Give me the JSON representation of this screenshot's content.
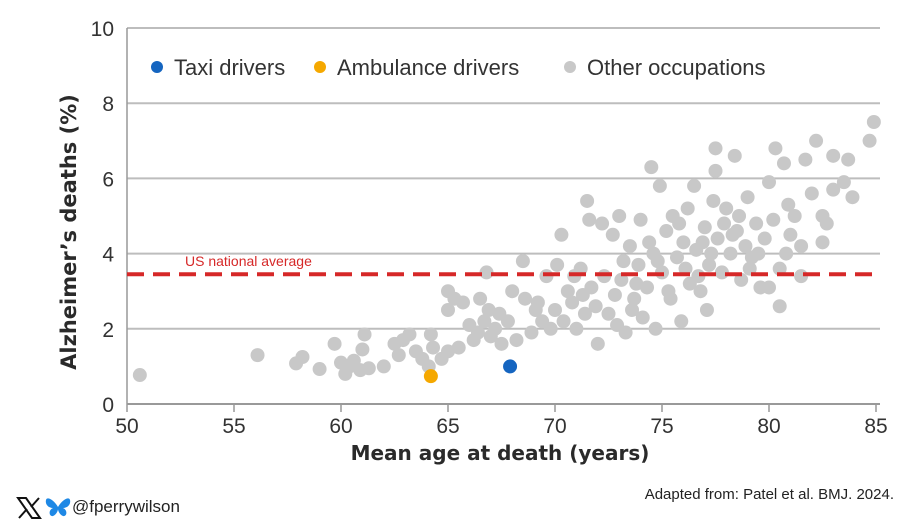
{
  "chart_data": {
    "type": "scatter",
    "xlabel": "Mean age at death (years)",
    "ylabel": "Alzheimer’s deaths (%)",
    "xlim": [
      50,
      85
    ],
    "ylim": [
      0,
      10
    ],
    "xticks": [
      50,
      55,
      60,
      65,
      70,
      75,
      80,
      85
    ],
    "yticks": [
      0,
      2,
      4,
      6,
      8,
      10
    ],
    "grid": "horizontal",
    "legend_position": "top",
    "reference_line": {
      "label": "US national average",
      "y": 3.45,
      "color": "#d62828"
    },
    "series": [
      {
        "name": "Taxi drivers",
        "color": "#1565c0",
        "points": [
          [
            67.9,
            1.0
          ]
        ]
      },
      {
        "name": "Ambulance drivers",
        "color": "#f5a800",
        "points": [
          [
            64.2,
            0.74
          ]
        ]
      },
      {
        "name": "Other occupations",
        "color": "#c8c8c8",
        "points": [
          [
            50.6,
            0.77
          ],
          [
            56.1,
            1.3
          ],
          [
            57.9,
            1.08
          ],
          [
            58.2,
            1.25
          ],
          [
            59,
            0.93
          ],
          [
            59.7,
            1.6
          ],
          [
            60,
            1.1
          ],
          [
            60.2,
            0.8
          ],
          [
            60.4,
            1.0
          ],
          [
            60.6,
            1.15
          ],
          [
            60.9,
            0.9
          ],
          [
            61,
            1.45
          ],
          [
            61.1,
            1.85
          ],
          [
            61.3,
            0.95
          ],
          [
            62,
            1.0
          ],
          [
            62.5,
            1.6
          ],
          [
            62.7,
            1.3
          ],
          [
            62.9,
            1.7
          ],
          [
            63.2,
            1.85
          ],
          [
            63.5,
            1.4
          ],
          [
            63.8,
            1.2
          ],
          [
            64.1,
            1.0
          ],
          [
            64.2,
            1.85
          ],
          [
            64.3,
            1.5
          ],
          [
            64.7,
            1.2
          ],
          [
            65,
            1.4
          ],
          [
            65,
            3.0
          ],
          [
            65,
            2.5
          ],
          [
            65.3,
            2.8
          ],
          [
            65.5,
            1.5
          ],
          [
            65.7,
            2.7
          ],
          [
            66,
            2.1
          ],
          [
            66.2,
            1.7
          ],
          [
            66.4,
            1.9
          ],
          [
            66.5,
            2.8
          ],
          [
            66.8,
            3.5
          ],
          [
            66.9,
            2.5
          ],
          [
            67,
            1.8
          ],
          [
            67.2,
            2.0
          ],
          [
            67.5,
            1.6
          ],
          [
            67.8,
            2.2
          ],
          [
            68,
            3.0
          ],
          [
            68.2,
            1.7
          ],
          [
            68.5,
            3.8
          ],
          [
            68.6,
            2.8
          ],
          [
            68.9,
            1.9
          ],
          [
            69.2,
            2.7
          ],
          [
            69.4,
            2.2
          ],
          [
            69.6,
            3.4
          ],
          [
            69.8,
            2.0
          ],
          [
            70,
            2.5
          ],
          [
            70.1,
            3.7
          ],
          [
            70.3,
            4.5
          ],
          [
            70.4,
            2.2
          ],
          [
            70.6,
            3.0
          ],
          [
            70.8,
            2.7
          ],
          [
            71,
            2.0
          ],
          [
            71.2,
            3.6
          ],
          [
            71.4,
            2.4
          ],
          [
            71.5,
            5.4
          ],
          [
            71.6,
            4.9
          ],
          [
            71.7,
            3.1
          ],
          [
            71.9,
            2.6
          ],
          [
            72,
            1.6
          ],
          [
            72.2,
            4.8
          ],
          [
            72.3,
            3.4
          ],
          [
            72.5,
            2.4
          ],
          [
            72.7,
            4.5
          ],
          [
            72.8,
            2.9
          ],
          [
            73,
            5.0
          ],
          [
            73.1,
            3.3
          ],
          [
            73.3,
            1.9
          ],
          [
            73.5,
            4.2
          ],
          [
            73.7,
            2.8
          ],
          [
            73.9,
            3.7
          ],
          [
            74,
            4.9
          ],
          [
            74.1,
            2.3
          ],
          [
            74.3,
            3.1
          ],
          [
            74.5,
            6.3
          ],
          [
            74.6,
            4.0
          ],
          [
            74.7,
            2.0
          ],
          [
            74.9,
            5.8
          ],
          [
            75,
            3.5
          ],
          [
            75.2,
            4.6
          ],
          [
            75.4,
            2.8
          ],
          [
            75.5,
            5.0
          ],
          [
            75.7,
            3.9
          ],
          [
            75.9,
            2.2
          ],
          [
            76,
            4.3
          ],
          [
            76.2,
            5.2
          ],
          [
            76.3,
            3.2
          ],
          [
            76.5,
            5.8
          ],
          [
            76.6,
            4.1
          ],
          [
            76.8,
            3.0
          ],
          [
            77,
            4.7
          ],
          [
            77.1,
            2.5
          ],
          [
            77.2,
            3.7
          ],
          [
            77.4,
            5.4
          ],
          [
            77.5,
            6.2
          ],
          [
            77.5,
            6.8
          ],
          [
            77.6,
            4.4
          ],
          [
            77.8,
            3.5
          ],
          [
            78,
            5.2
          ],
          [
            78.2,
            4.0
          ],
          [
            78.4,
            6.6
          ],
          [
            78.5,
            4.6
          ],
          [
            78.7,
            3.3
          ],
          [
            78.9,
            4.2
          ],
          [
            79,
            5.5
          ],
          [
            79.2,
            3.9
          ],
          [
            79.4,
            4.8
          ],
          [
            79.6,
            3.1
          ],
          [
            79.8,
            4.4
          ],
          [
            80,
            5.9
          ],
          [
            80,
            3.1
          ],
          [
            80.2,
            4.9
          ],
          [
            80.3,
            6.8
          ],
          [
            80.5,
            3.6
          ],
          [
            80.5,
            2.6
          ],
          [
            80.7,
            6.4
          ],
          [
            80.9,
            5.3
          ],
          [
            81,
            4.5
          ],
          [
            81.5,
            3.4
          ],
          [
            81.5,
            4.2
          ],
          [
            81.7,
            6.5
          ],
          [
            82,
            5.6
          ],
          [
            82.2,
            7.0
          ],
          [
            82.5,
            4.3
          ],
          [
            82.5,
            5.0
          ],
          [
            82.7,
            4.8
          ],
          [
            83,
            6.6
          ],
          [
            83,
            5.7
          ],
          [
            83.5,
            5.9
          ],
          [
            83.7,
            6.5
          ],
          [
            83.9,
            5.5
          ],
          [
            84.7,
            7.0
          ],
          [
            84.9,
            7.5
          ],
          [
            73.8,
            3.2
          ],
          [
            74.8,
            3.8
          ],
          [
            76.1,
            3.6
          ],
          [
            77.3,
            4.0
          ],
          [
            78.3,
            4.5
          ],
          [
            79.5,
            4.0
          ],
          [
            75.3,
            3.0
          ],
          [
            72.9,
            2.1
          ],
          [
            73.6,
            2.5
          ],
          [
            76.9,
            4.3
          ],
          [
            78.6,
            5.0
          ],
          [
            79.1,
            3.6
          ],
          [
            74.4,
            4.3
          ],
          [
            75.8,
            4.8
          ],
          [
            71.3,
            2.9
          ],
          [
            70.9,
            3.4
          ],
          [
            69.1,
            2.5
          ],
          [
            67.4,
            2.4
          ],
          [
            66.7,
            2.2
          ],
          [
            73.2,
            3.8
          ],
          [
            76.7,
            3.4
          ],
          [
            77.9,
            4.8
          ],
          [
            80.8,
            4.0
          ],
          [
            81.2,
            5.0
          ]
        ]
      }
    ]
  },
  "footer": {
    "handle": "@fperrywilson",
    "source": "Adapted from: Patel et al. BMJ. 2024."
  }
}
